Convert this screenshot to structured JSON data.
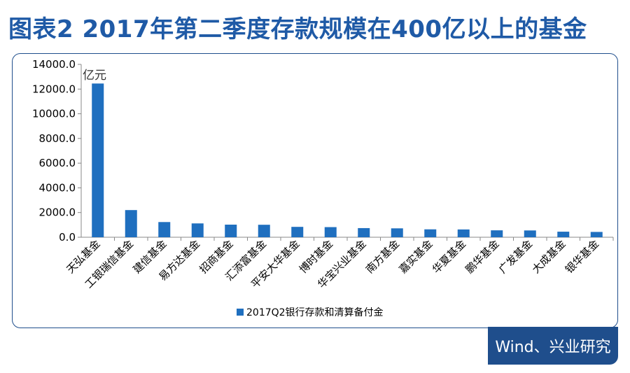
{
  "title": "图表2 2017年第二季度存款规模在400亿以上的基金",
  "source": "Wind、兴业研究",
  "colors": {
    "title": "#1f5aa6",
    "bar": "#1f6fbf",
    "frame": "#1f4e8c",
    "axis_text": "#000000"
  },
  "chart_data": {
    "type": "bar",
    "unit_label": "亿元",
    "categories": [
      "天弘基金",
      "工银瑞信基金",
      "建信基金",
      "易方达基金",
      "招商基金",
      "汇添富基金",
      "平安大华基金",
      "博时基金",
      "华宝兴业基金",
      "南方基金",
      "嘉实基金",
      "华夏基金",
      "鹏华基金",
      "广发基金",
      "大成基金",
      "银华基金"
    ],
    "series": [
      {
        "name": "2017Q2银行存款和清算备付金",
        "values": [
          12450,
          2200,
          1230,
          1120,
          1020,
          1010,
          840,
          820,
          740,
          720,
          640,
          630,
          560,
          550,
          450,
          430
        ]
      }
    ],
    "yticks": [
      "14000.0",
      "12000.0",
      "10000.0",
      "8000.0",
      "6000.0",
      "4000.0",
      "2000.0",
      "0.0"
    ],
    "ylim": [
      0,
      14000
    ],
    "grid": false,
    "legend_position": "bottom-left"
  }
}
